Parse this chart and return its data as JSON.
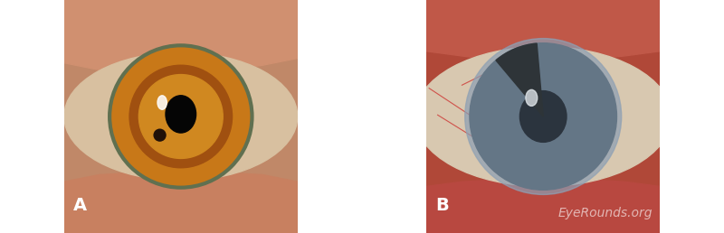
{
  "figsize": [
    8.0,
    2.58
  ],
  "dpi": 100,
  "label_A": "A",
  "label_B": "B",
  "watermark": "EyeRounds.org",
  "label_color": "white",
  "label_fontsize": 14,
  "watermark_color": "white",
  "watermark_fontsize": 10,
  "watermark_alpha": 0.6,
  "panel_A": {
    "bg": "#c08868",
    "upper_lid": "#d09070",
    "lower_lid": "#c88060",
    "sclera": "#d8c0a0",
    "iris_outer": "#c87818",
    "iris_mid": "#a05010",
    "iris_inner": "#d08820",
    "limbus": "#607050",
    "pupil": "#050505",
    "highlight": "#ffffff",
    "iris_spot": "#201008"
  },
  "panel_B": {
    "bg": "#b04838",
    "upper_tissue": "#c05848",
    "lower_tissue": "#b84840",
    "sclera": "#d8c8b0",
    "vessel_color": "#cc2020",
    "cornea_haze": "#8090a8",
    "iris": "#506070",
    "pupil": "#050810",
    "iridectomy": "#080808",
    "highlight": "#ffffff",
    "cloud": "#a0b8c8"
  }
}
